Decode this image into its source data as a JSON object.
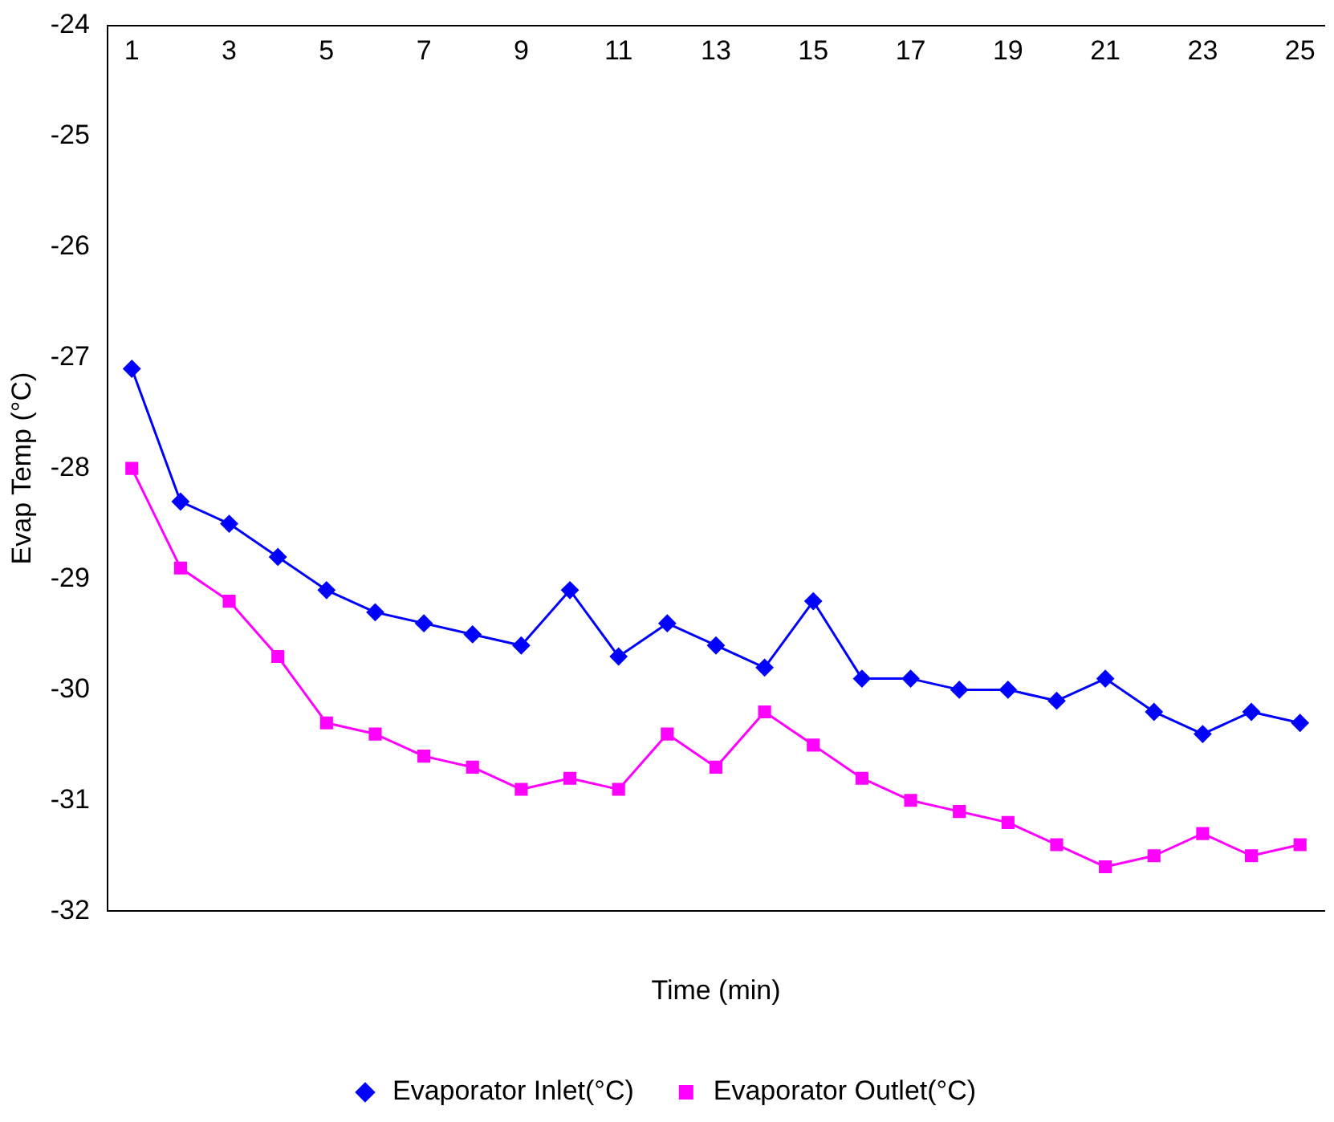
{
  "chart_data": {
    "type": "line",
    "xlabel": "Time (min)",
    "ylabel": "Evap Temp (°C)",
    "x": [
      1,
      2,
      3,
      4,
      5,
      6,
      7,
      8,
      9,
      10,
      11,
      12,
      13,
      14,
      15,
      16,
      17,
      18,
      19,
      20,
      21,
      22,
      23,
      24,
      25
    ],
    "xlim": [
      0.5,
      25.5
    ],
    "xticks": [
      1,
      3,
      5,
      7,
      9,
      11,
      13,
      15,
      17,
      19,
      21,
      23,
      25
    ],
    "ylim": [
      -32,
      -24
    ],
    "yticks": [
      -32,
      -31,
      -30,
      -29,
      -28,
      -27,
      -26,
      -25,
      -24
    ],
    "grid": false,
    "legend": "bottom",
    "line_style": "solid",
    "series": [
      {
        "name": "Evaporator Inlet(°C)",
        "color": "#0000ff",
        "marker": "diamond",
        "values": [
          -27.1,
          -28.3,
          -28.5,
          -28.8,
          -29.1,
          -29.3,
          -29.4,
          -29.5,
          -29.6,
          -29.1,
          -29.7,
          -29.4,
          -29.6,
          -29.8,
          -29.2,
          -29.9,
          -29.9,
          -30.0,
          -30.0,
          -30.1,
          -29.9,
          -30.2,
          -30.4,
          -30.2,
          -30.3
        ]
      },
      {
        "name": "Evaporator Outlet(°C)",
        "color": "#ff00ff",
        "marker": "square",
        "values": [
          -28.0,
          -28.9,
          -29.2,
          -29.7,
          -30.3,
          -30.4,
          -30.6,
          -30.7,
          -30.9,
          -30.8,
          -30.9,
          -30.4,
          -30.7,
          -30.2,
          -30.5,
          -30.8,
          -31.0,
          -31.1,
          -31.2,
          -31.4,
          -31.6,
          -31.5,
          -31.3,
          -31.5,
          -31.4
        ]
      }
    ]
  }
}
